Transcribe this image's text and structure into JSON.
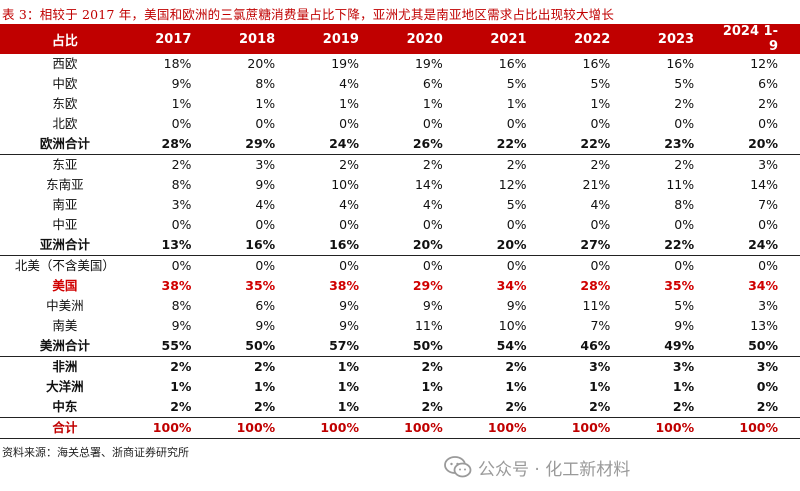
{
  "caption": "表 3：相较于 2017 年，美国和欧洲的三氯蔗糖消费量占比下降，亚洲尤其是南亚地区需求占比出现较大增长",
  "table": {
    "headers": [
      "占比",
      "2017",
      "2018",
      "2019",
      "2020",
      "2021",
      "2022",
      "2023",
      "2024 1-9"
    ],
    "rows": [
      {
        "label": "西欧",
        "values": [
          "18%",
          "20%",
          "19%",
          "19%",
          "16%",
          "16%",
          "16%",
          "12%"
        ]
      },
      {
        "label": "中欧",
        "values": [
          "9%",
          "8%",
          "4%",
          "6%",
          "5%",
          "5%",
          "5%",
          "6%"
        ]
      },
      {
        "label": "东欧",
        "values": [
          "1%",
          "1%",
          "1%",
          "1%",
          "1%",
          "1%",
          "2%",
          "2%"
        ]
      },
      {
        "label": "北欧",
        "values": [
          "0%",
          "0%",
          "0%",
          "0%",
          "0%",
          "0%",
          "0%",
          "0%"
        ]
      },
      {
        "label": "欧洲合计",
        "values": [
          "28%",
          "29%",
          "24%",
          "26%",
          "22%",
          "22%",
          "23%",
          "20%"
        ]
      },
      {
        "label": "东亚",
        "values": [
          "2%",
          "3%",
          "2%",
          "2%",
          "2%",
          "2%",
          "2%",
          "3%"
        ]
      },
      {
        "label": "东南亚",
        "values": [
          "8%",
          "9%",
          "10%",
          "14%",
          "12%",
          "21%",
          "11%",
          "14%"
        ]
      },
      {
        "label": "南亚",
        "values": [
          "3%",
          "4%",
          "4%",
          "4%",
          "5%",
          "4%",
          "8%",
          "7%"
        ]
      },
      {
        "label": "中亚",
        "values": [
          "0%",
          "0%",
          "0%",
          "0%",
          "0%",
          "0%",
          "0%",
          "0%"
        ]
      },
      {
        "label": "亚洲合计",
        "values": [
          "13%",
          "16%",
          "16%",
          "20%",
          "20%",
          "27%",
          "22%",
          "24%"
        ]
      },
      {
        "label": "北美（不含美国）",
        "values": [
          "0%",
          "0%",
          "0%",
          "0%",
          "0%",
          "0%",
          "0%",
          "0%"
        ]
      },
      {
        "label": "美国",
        "values": [
          "38%",
          "35%",
          "38%",
          "29%",
          "34%",
          "28%",
          "35%",
          "34%"
        ]
      },
      {
        "label": "中美洲",
        "values": [
          "8%",
          "6%",
          "9%",
          "9%",
          "9%",
          "11%",
          "5%",
          "3%"
        ]
      },
      {
        "label": "南美",
        "values": [
          "9%",
          "9%",
          "9%",
          "11%",
          "10%",
          "7%",
          "9%",
          "13%"
        ]
      },
      {
        "label": "美洲合计",
        "values": [
          "55%",
          "50%",
          "57%",
          "50%",
          "54%",
          "46%",
          "49%",
          "50%"
        ]
      },
      {
        "label": "非洲",
        "values": [
          "2%",
          "2%",
          "1%",
          "2%",
          "2%",
          "3%",
          "3%",
          "3%"
        ]
      },
      {
        "label": "大洋洲",
        "values": [
          "1%",
          "1%",
          "1%",
          "1%",
          "1%",
          "1%",
          "1%",
          "0%"
        ]
      },
      {
        "label": "中东",
        "values": [
          "2%",
          "2%",
          "1%",
          "2%",
          "2%",
          "2%",
          "2%",
          "2%"
        ]
      },
      {
        "label": "合计",
        "values": [
          "100%",
          "100%",
          "100%",
          "100%",
          "100%",
          "100%",
          "100%",
          "100%"
        ]
      }
    ]
  },
  "source": "资料来源：海关总署、浙商证券研究所",
  "watermark": "公众号 · 化工新材料",
  "colors": {
    "header_bg": "#c00000",
    "highlight": "#d00000"
  }
}
